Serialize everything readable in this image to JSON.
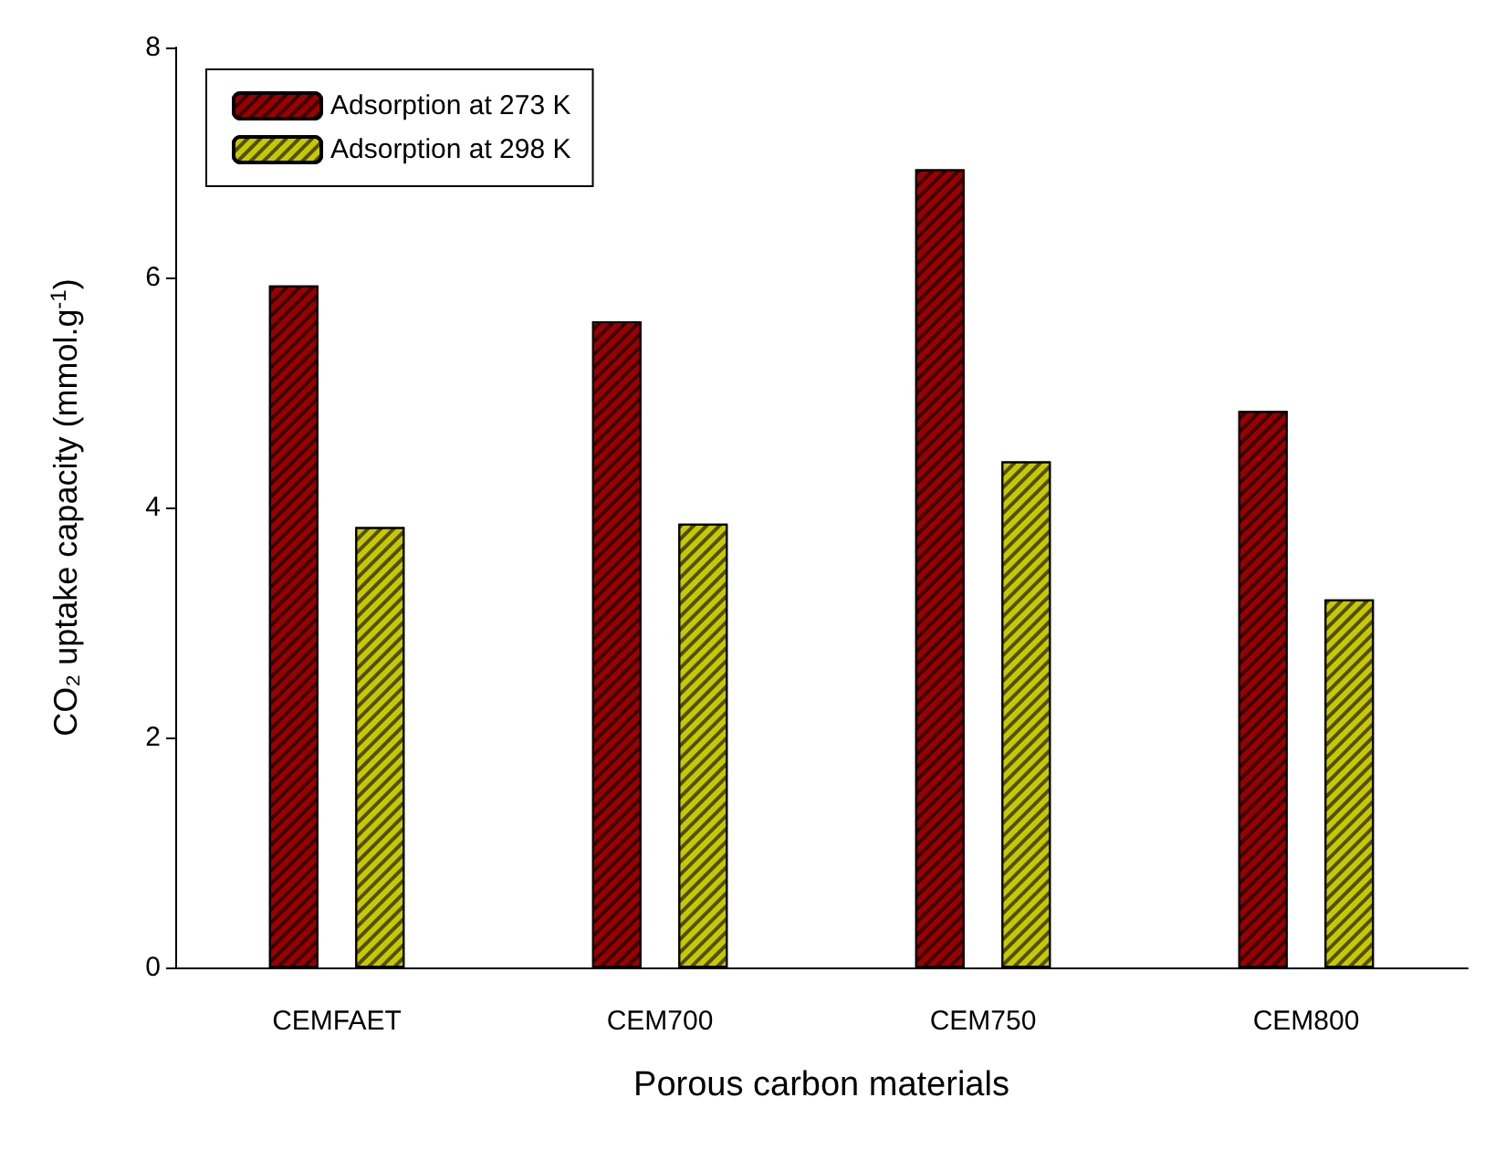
{
  "chart_data": {
    "type": "bar",
    "xlabel": "Porous carbon materials",
    "ylabel": "CO₂ uptake capacity (mmol.g$^{-1}$)",
    "categories": [
      "CEMFAET",
      "CEM700",
      "CEM750",
      "CEM800"
    ],
    "series": [
      {
        "name": "Adsorption at 273 K",
        "color": "#990000",
        "values": [
          5.93,
          5.62,
          6.94,
          4.84
        ]
      },
      {
        "name": "Adsorption at 298 K",
        "color": "#c8c800",
        "values": [
          3.83,
          3.86,
          4.4,
          3.2
        ]
      }
    ],
    "ylim": [
      0,
      8
    ],
    "yticks": [
      0,
      2,
      4,
      6,
      8
    ],
    "grid": false,
    "legend": "top left"
  }
}
